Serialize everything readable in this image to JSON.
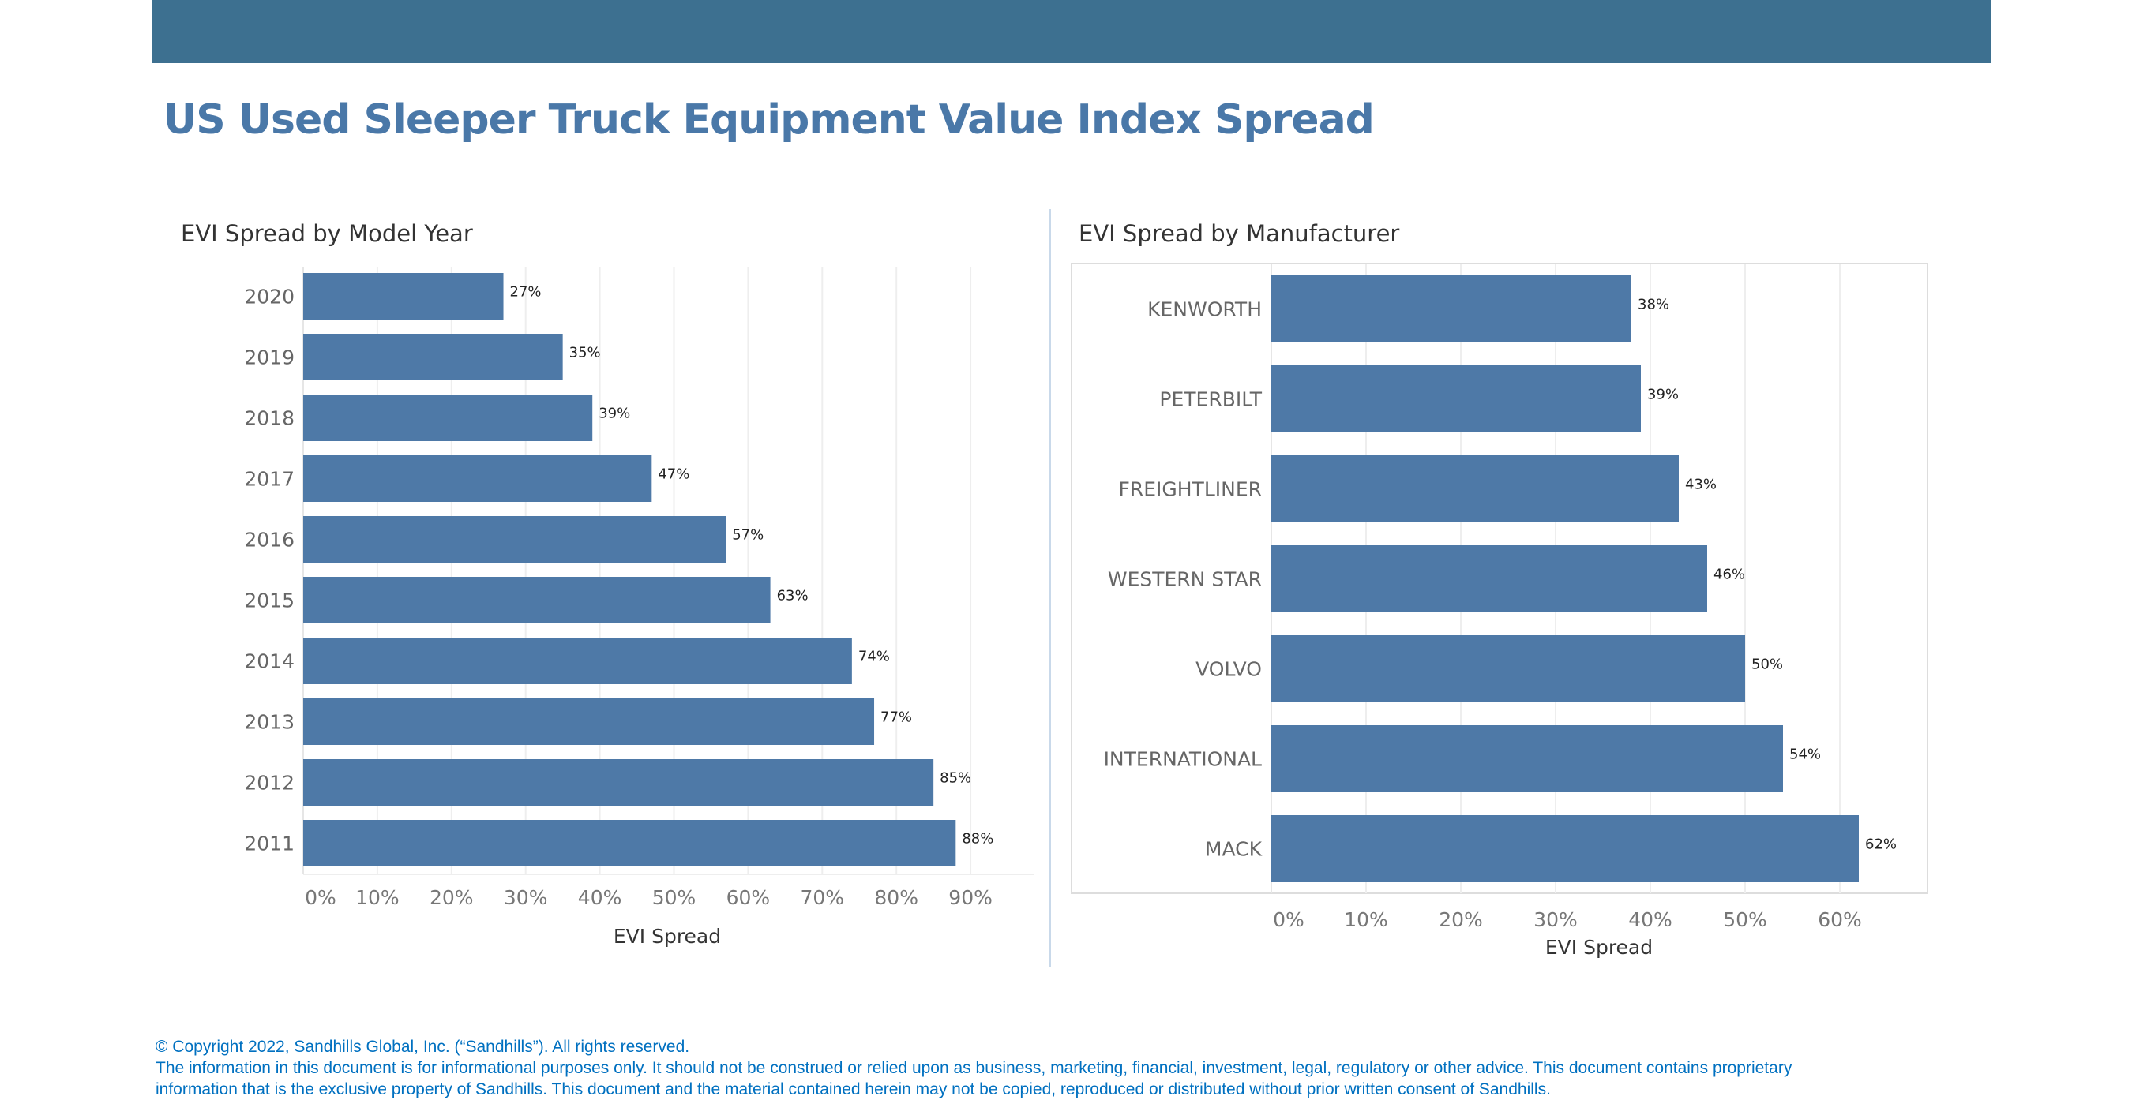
{
  "header": {
    "title": "US Used Sleeper Truck Equipment Value Index Spread",
    "banner_color": "#3d7090"
  },
  "footer": {
    "copyright": "© Copyright 2022, Sandhills Global, Inc. (“Sandhills”). All rights reserved.",
    "disclaimer_1": "The information in this document is for informational purposes only.  It should not be construed or relied upon as business, marketing, financial, investment, legal, regulatory or other advice. This document contains proprietary",
    "disclaimer_2": "information that is the exclusive property of Sandhills. This document and the material contained herein may not be copied, reproduced or distributed without prior written consent of Sandhills."
  },
  "chart_data": [
    {
      "type": "bar",
      "orientation": "horizontal",
      "title": "EVI Spread by Model Year",
      "xlabel": "EVI Spread",
      "ylabel": "",
      "categories": [
        "2020",
        "2019",
        "2018",
        "2017",
        "2016",
        "2015",
        "2014",
        "2013",
        "2012",
        "2011"
      ],
      "values": [
        27,
        35,
        39,
        47,
        57,
        63,
        74,
        77,
        85,
        88
      ],
      "data_labels": [
        "27%",
        "35%",
        "39%",
        "47%",
        "57%",
        "63%",
        "74%",
        "77%",
        "85%",
        "88%"
      ],
      "xticks": [
        "0%",
        "10%",
        "20%",
        "30%",
        "40%",
        "50%",
        "60%",
        "70%",
        "80%",
        "90%"
      ],
      "xlim": [
        0,
        97
      ],
      "grid": true,
      "color": "#4e79a7"
    },
    {
      "type": "bar",
      "orientation": "horizontal",
      "title": "EVI Spread by Manufacturer",
      "xlabel": "EVI Spread",
      "ylabel": "",
      "categories": [
        "KENWORTH",
        "PETERBILT",
        "FREIGHTLINER",
        "WESTERN STAR",
        "VOLVO",
        "INTERNATIONAL",
        "MACK"
      ],
      "values": [
        38,
        39,
        43,
        46,
        50,
        54,
        62
      ],
      "data_labels": [
        "38%",
        "39%",
        "43%",
        "46%",
        "50%",
        "54%",
        "62%"
      ],
      "xticks": [
        "0%",
        "10%",
        "20%",
        "30%",
        "40%",
        "50%",
        "60%"
      ],
      "xlim": [
        0,
        69
      ],
      "grid": true,
      "color": "#4e79a7"
    }
  ]
}
